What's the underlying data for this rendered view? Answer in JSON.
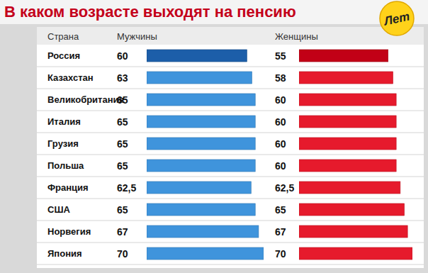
{
  "chart_data": {
    "type": "bar",
    "orientation": "horizontal",
    "title": "В каком возрасте выходят на пенсию",
    "ylabel": "Страна",
    "annotations": [
      {
        "text": "Лет"
      }
    ],
    "categories": [
      "Россия",
      "Казахстан",
      "Великобритания",
      "Италия",
      "Грузия",
      "Польша",
      "Франция",
      "США",
      "Норвегия",
      "Япония"
    ],
    "series": [
      {
        "name": "Мужчины",
        "values": [
          60,
          63,
          65,
          65,
          65,
          65,
          62.5,
          65,
          67,
          70
        ],
        "value_labels": [
          "60",
          "63",
          "65",
          "65",
          "65",
          "65",
          "62,5",
          "65",
          "67",
          "70"
        ],
        "colors": [
          "#1c5ea9",
          "#3f94dc",
          "#3f94dc",
          "#3f94dc",
          "#3f94dc",
          "#3f94dc",
          "#3f94dc",
          "#3f94dc",
          "#3f94dc",
          "#3f94dc"
        ]
      },
      {
        "name": "Женщины",
        "values": [
          55,
          58,
          60,
          60,
          60,
          60,
          62.5,
          65,
          67,
          70
        ],
        "value_labels": [
          "55",
          "58",
          "60",
          "60",
          "60",
          "60",
          "62,5",
          "65",
          "67",
          "70"
        ],
        "colors": [
          "#c20016",
          "#e61a2c",
          "#e61a2c",
          "#e61a2c",
          "#e61a2c",
          "#e61a2c",
          "#e61a2c",
          "#e61a2c",
          "#e61a2c",
          "#e61a2c"
        ]
      }
    ],
    "xlim": [
      0,
      70
    ],
    "data_labels": true,
    "tick_labels": false,
    "grid": false
  }
}
